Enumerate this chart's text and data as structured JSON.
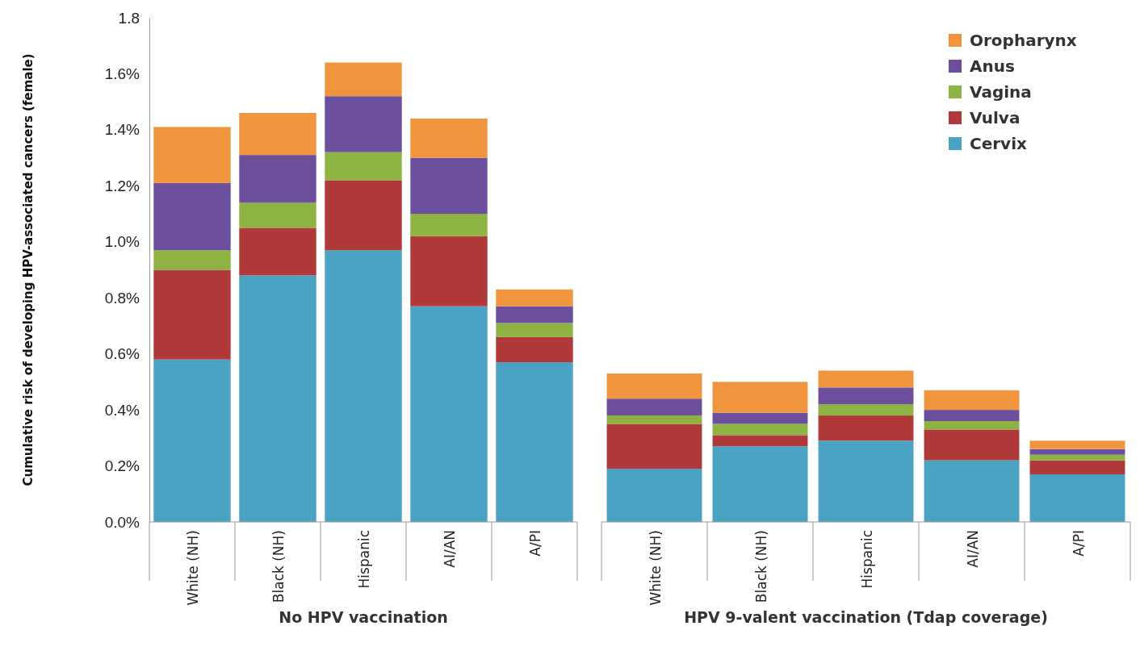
{
  "chart_data": [
    {
      "type": "bar",
      "stacked": true,
      "ylabel": "Cumulative risk of developing HPV-associated cancers (female)",
      "xlabel": "No HPV vaccination",
      "categories": [
        "White (NH)",
        "Black (NH)",
        "Hispanic",
        "AI/AN",
        "A/PI"
      ],
      "ylim": [
        0,
        1.8
      ],
      "yticks": [
        {
          "value": 0,
          "label": "0.0%"
        },
        {
          "value": 0.2,
          "label": "0.2%"
        },
        {
          "value": 0.4,
          "label": "0.4%"
        },
        {
          "value": 0.6,
          "label": "0.6%"
        },
        {
          "value": 0.8,
          "label": "0.8%"
        },
        {
          "value": 1.0,
          "label": "1.0%"
        },
        {
          "value": 1.2,
          "label": "1.2%"
        },
        {
          "value": 1.4,
          "label": "1.4%"
        },
        {
          "value": 1.6,
          "label": "1.6%"
        },
        {
          "value": 1.8,
          "label": "1.8"
        }
      ],
      "series": [
        {
          "color": "#4ba3c3",
          "values": [
            0.58,
            0.88,
            0.97,
            0.77,
            0.57
          ]
        },
        {
          "color": "#b03a3a",
          "values": [
            0.32,
            0.17,
            0.25,
            0.25,
            0.09
          ]
        },
        {
          "color": "#8db443",
          "values": [
            0.07,
            0.09,
            0.1,
            0.08,
            0.05
          ]
        },
        {
          "color": "#6b4f9c",
          "values": [
            0.24,
            0.17,
            0.2,
            0.2,
            0.06
          ]
        },
        {
          "color": "#f0953e",
          "values": [
            0.2,
            0.15,
            0.12,
            0.14,
            0.06
          ]
        }
      ]
    },
    {
      "type": "bar",
      "stacked": true,
      "xlabel": "HPV 9-valent vaccination (Tdap coverage)",
      "legend": "top right",
      "tick_labels": "x",
      "categories": [
        "White (NH)",
        "Black (NH)",
        "Hispanic",
        "AI/AN",
        "A/PI"
      ],
      "ylim": [
        0,
        1.8
      ],
      "series": [
        {
          "name": "Cervix",
          "color": "#4ba3c3",
          "values": [
            0.19,
            0.27,
            0.29,
            0.22,
            0.17
          ]
        },
        {
          "name": "Vulva",
          "color": "#b03a3a",
          "values": [
            0.16,
            0.04,
            0.09,
            0.11,
            0.05
          ]
        },
        {
          "name": "Vagina",
          "color": "#8db443",
          "values": [
            0.03,
            0.04,
            0.04,
            0.03,
            0.02
          ]
        },
        {
          "name": "Anus",
          "color": "#6b4f9c",
          "values": [
            0.06,
            0.04,
            0.06,
            0.04,
            0.02
          ]
        },
        {
          "name": "Oropharynx",
          "color": "#f0953e",
          "values": [
            0.09,
            0.11,
            0.06,
            0.07,
            0.03
          ]
        }
      ]
    }
  ]
}
